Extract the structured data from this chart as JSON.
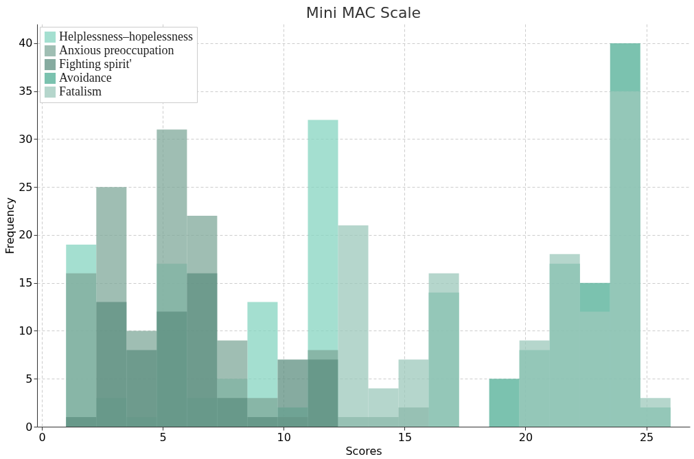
{
  "chart_data": {
    "type": "histogram",
    "title": "Mini MAC Scale",
    "xlabel": "Scores",
    "ylabel": "Frequency",
    "bins": [
      1,
      2.25,
      3.5,
      4.75,
      6,
      7.25,
      8.5,
      9.75,
      11,
      12.25,
      13.5,
      14.75,
      16,
      17.25,
      18.5,
      19.75,
      21,
      22.25,
      23.5,
      24.75,
      26
    ],
    "series": [
      {
        "name": "Helplessness–hopelessness",
        "color": "#86d4c0",
        "values": [
          19,
          3,
          1,
          17,
          3,
          5,
          13,
          2,
          32,
          0,
          0,
          0,
          0,
          0,
          0,
          0,
          0,
          0,
          0,
          0
        ]
      },
      {
        "name": "Anxious preoccupation",
        "color": "#7fa899",
        "values": [
          16,
          25,
          10,
          31,
          22,
          9,
          3,
          1,
          8,
          0,
          0,
          0,
          0,
          0,
          0,
          0,
          0,
          0,
          0,
          0
        ]
      },
      {
        "name": "Fighting spirit'",
        "color": "#5e8f80",
        "values": [
          1,
          13,
          8,
          12,
          16,
          3,
          1,
          7,
          7,
          1,
          1,
          2,
          0,
          0,
          0,
          0,
          0,
          0,
          0,
          0
        ]
      },
      {
        "name": "Avoidance",
        "color": "#4fae94",
        "values": [
          0,
          0,
          0,
          0,
          0,
          0,
          0,
          0,
          0,
          0,
          0,
          0,
          14,
          0,
          5,
          8,
          17,
          15,
          40,
          2
        ]
      },
      {
        "name": "Fatalism",
        "color": "#9cc8bb",
        "values": [
          0,
          0,
          0,
          0,
          0,
          0,
          0,
          0,
          0,
          21,
          4,
          7,
          16,
          0,
          0,
          9,
          18,
          12,
          35,
          3
        ]
      }
    ],
    "xlim": [
      -0.2,
      26.8
    ],
    "ylim": [
      0,
      42
    ],
    "xticks": [
      0,
      5,
      10,
      15,
      20,
      25
    ],
    "yticks": [
      0,
      5,
      10,
      15,
      20,
      25,
      30,
      35,
      40
    ],
    "grid": true,
    "legend": "top left"
  }
}
